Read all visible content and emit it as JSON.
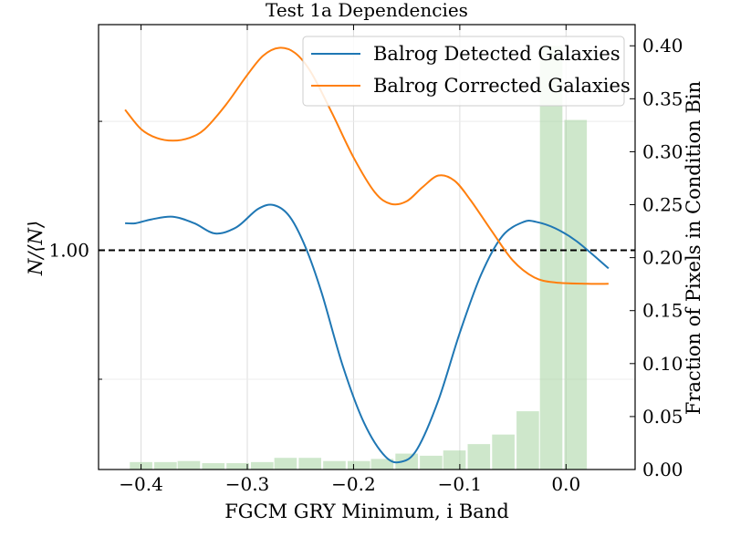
{
  "chart_data": {
    "type": "line",
    "title": "Test 1a Dependencies",
    "xlabel": "FGCM GRY Minimum, i Band",
    "ylabel": "N/⟨N⟩",
    "y2label": "Fraction of Pixels in Condition Bin",
    "xlim": [
      -0.44,
      0.065
    ],
    "ylim": [
      0.83,
      1.175
    ],
    "y2lim": [
      0.0,
      0.42
    ],
    "x_ticks": [
      -0.4,
      -0.3,
      -0.2,
      -0.1,
      0.0
    ],
    "x_tick_labels": [
      "−0.4",
      "−0.3",
      "−0.2",
      "−0.1",
      "0.0"
    ],
    "y_ticks": [
      1.0
    ],
    "y_tick_labels": [
      "1.00"
    ],
    "y_minor_ticks": [
      0.9,
      1.1
    ],
    "y2_ticks": [
      0.0,
      0.05,
      0.1,
      0.15,
      0.2,
      0.25,
      0.3,
      0.35,
      0.4
    ],
    "y2_tick_labels": [
      "0.00",
      "0.05",
      "0.10",
      "0.15",
      "0.20",
      "0.25",
      "0.30",
      "0.35",
      "0.40"
    ],
    "grid": true,
    "legend_position": "top-right",
    "reference_line": {
      "y": 1.0,
      "style": "dashed",
      "color": "#000000"
    },
    "series": [
      {
        "name": "Balrog Detected Galaxies",
        "color": "#1f77b4",
        "x": [
          -0.415,
          -0.405,
          -0.39,
          -0.37,
          -0.35,
          -0.33,
          -0.31,
          -0.29,
          -0.275,
          -0.26,
          -0.245,
          -0.23,
          -0.21,
          -0.19,
          -0.17,
          -0.155,
          -0.14,
          -0.12,
          -0.1,
          -0.08,
          -0.06,
          -0.04,
          -0.028,
          -0.01,
          0.01,
          0.04
        ],
        "y": [
          1.021,
          1.021,
          1.024,
          1.026,
          1.021,
          1.013,
          1.018,
          1.032,
          1.035,
          1.026,
          1.002,
          0.967,
          0.91,
          0.866,
          0.84,
          0.836,
          0.846,
          0.884,
          0.936,
          0.981,
          1.011,
          1.022,
          1.022,
          1.017,
          1.007,
          0.986
        ]
      },
      {
        "name": "Balrog Corrected Galaxies",
        "color": "#ff7f0e",
        "x": [
          -0.415,
          -0.4,
          -0.385,
          -0.37,
          -0.355,
          -0.34,
          -0.32,
          -0.3,
          -0.285,
          -0.27,
          -0.255,
          -0.24,
          -0.22,
          -0.2,
          -0.18,
          -0.165,
          -0.15,
          -0.135,
          -0.12,
          -0.105,
          -0.09,
          -0.07,
          -0.05,
          -0.03,
          -0.01,
          0.02,
          0.04
        ],
        "y": [
          1.109,
          1.094,
          1.087,
          1.085,
          1.087,
          1.094,
          1.113,
          1.136,
          1.151,
          1.157,
          1.153,
          1.138,
          1.106,
          1.072,
          1.045,
          1.036,
          1.038,
          1.049,
          1.058,
          1.054,
          1.039,
          1.015,
          0.992,
          0.979,
          0.975,
          0.974,
          0.974
        ]
      },
      {
        "name": "",
        "type": "bar",
        "axis": "right",
        "color": "#a6d4a0",
        "x": [
          -0.4,
          -0.377,
          -0.355,
          -0.332,
          -0.309,
          -0.286,
          -0.264,
          -0.241,
          -0.218,
          -0.195,
          -0.173,
          -0.15,
          -0.127,
          -0.105,
          -0.082,
          -0.059,
          -0.036,
          -0.014,
          0.009
        ],
        "values": [
          0.007,
          0.007,
          0.008,
          0.006,
          0.006,
          0.007,
          0.011,
          0.011,
          0.008,
          0.008,
          0.01,
          0.015,
          0.013,
          0.018,
          0.024,
          0.033,
          0.055,
          0.4,
          0.33
        ]
      }
    ]
  }
}
